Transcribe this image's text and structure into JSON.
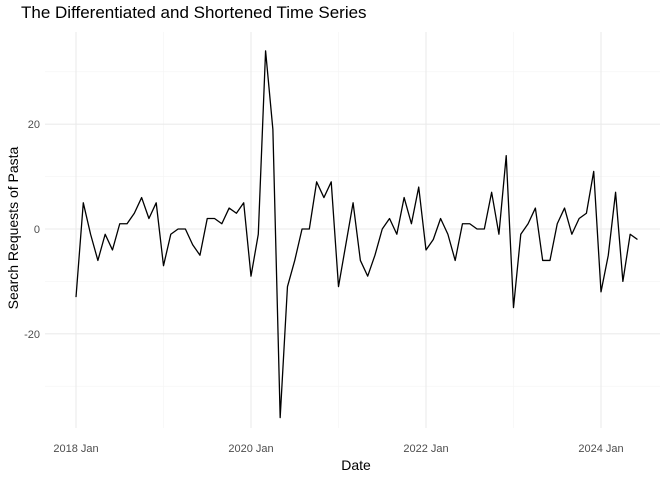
{
  "chart_data": {
    "type": "line",
    "title": "The Differentiated and Shortened Time Series",
    "xlabel": "Date",
    "ylabel": "Search Requests of Pasta",
    "x_ticks": [
      "2018 Jan",
      "2020 Jan",
      "2022 Jan",
      "2024 Jan"
    ],
    "y_ticks": [
      -20,
      0,
      20
    ],
    "ylim": [
      -38,
      35.5
    ],
    "grid": true,
    "x_start": "2018-01",
    "x_end": "2024-06",
    "values": [
      -13,
      5,
      -1,
      -6,
      -1,
      -4,
      1,
      1,
      3,
      6,
      2,
      5,
      -7,
      -1,
      0,
      0,
      -3,
      -5,
      2,
      2,
      1,
      4,
      3,
      5,
      -9,
      -1,
      34,
      19,
      -36,
      -11,
      -6,
      0,
      0,
      9,
      6,
      9,
      -11,
      -3,
      5,
      -6,
      -9,
      -5,
      0,
      2,
      -1,
      6,
      1,
      8,
      -4,
      -2,
      2,
      -1,
      -6,
      1,
      1,
      0,
      0,
      7,
      -1,
      14,
      -15,
      -1,
      1,
      4,
      -6,
      -6,
      1,
      4,
      -1,
      2,
      3,
      11,
      -12,
      -5,
      7,
      -10,
      -1,
      -2
    ]
  }
}
